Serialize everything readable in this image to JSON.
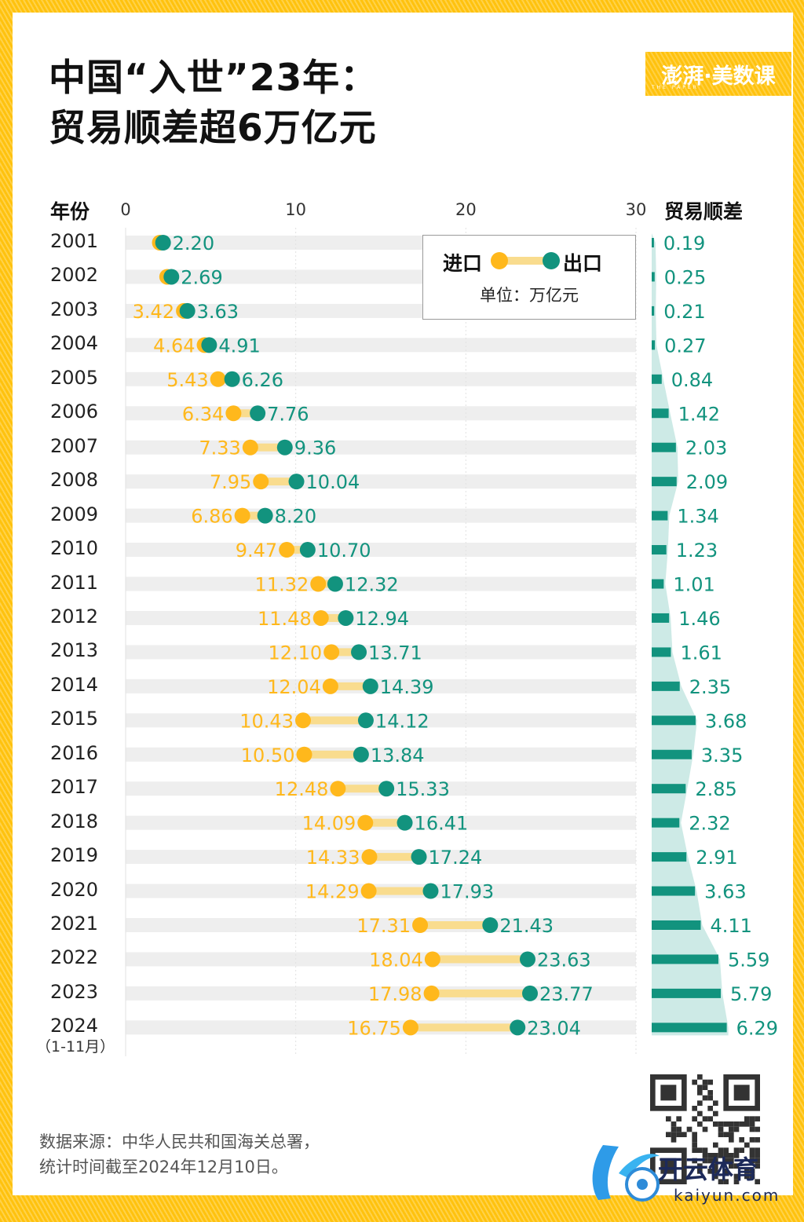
{
  "title_line1": "中国“入世”23年：",
  "title_line2": "贸易顺差超6万亿元",
  "logo_text": "澎湃·美数课",
  "logo_sub": "THE PAPER",
  "legend": {
    "import_label": "进口",
    "export_label": "出口",
    "unit": "单位：万亿元"
  },
  "headers": {
    "year": "年份",
    "balance": "贸易顺差"
  },
  "year_note": "（1-11月）",
  "source_line1": "数据来源：中华人民共和国海关总署，",
  "source_line2": "统计时间截至2024年12月10日。",
  "watermark": {
    "name": "开云体育",
    "url": "kaiyun.com"
  },
  "colors": {
    "import": "#FFB81C",
    "import_bar": "#F9DC8E",
    "export": "#12937E",
    "balance": "#12937E",
    "balance_area": "#CDEAE6",
    "row_band": "#EEEEEE",
    "frame": "#FFC20E"
  },
  "chart_data": {
    "type": "dumbbell",
    "title": "中国“入世”23年：贸易顺差超6万亿元",
    "unit": "万亿元",
    "xlim": [
      0,
      30
    ],
    "xticks": [
      "0",
      "10",
      "20",
      "30"
    ],
    "xtick_values": [
      0,
      10,
      20,
      30
    ],
    "grid": true,
    "legend_position": "top-right",
    "categories": [
      "2001",
      "2002",
      "2003",
      "2004",
      "2005",
      "2006",
      "2007",
      "2008",
      "2009",
      "2010",
      "2011",
      "2012",
      "2013",
      "2014",
      "2015",
      "2016",
      "2017",
      "2018",
      "2019",
      "2020",
      "2021",
      "2022",
      "2023",
      "2024"
    ],
    "series": [
      {
        "name": "进口",
        "values": [
          2.01,
          2.44,
          3.42,
          4.64,
          5.43,
          6.34,
          7.33,
          7.95,
          6.86,
          9.47,
          11.32,
          11.48,
          12.1,
          12.04,
          10.43,
          10.5,
          12.48,
          14.09,
          14.33,
          14.29,
          17.31,
          18.04,
          17.98,
          16.75
        ],
        "labels_shown": [
          false,
          false,
          true,
          true,
          true,
          true,
          true,
          true,
          true,
          true,
          true,
          true,
          true,
          true,
          true,
          true,
          true,
          true,
          true,
          true,
          true,
          true,
          true,
          true
        ]
      },
      {
        "name": "出口",
        "values": [
          2.2,
          2.69,
          3.63,
          4.91,
          6.26,
          7.76,
          9.36,
          10.04,
          8.2,
          10.7,
          12.32,
          12.94,
          13.71,
          14.39,
          14.12,
          13.84,
          15.33,
          16.41,
          17.24,
          17.93,
          21.43,
          23.63,
          23.77,
          23.04
        ]
      },
      {
        "name": "贸易顺差",
        "values": [
          0.19,
          0.25,
          0.21,
          0.27,
          0.84,
          1.42,
          2.03,
          2.09,
          1.34,
          1.23,
          1.01,
          1.46,
          1.61,
          2.35,
          3.68,
          3.35,
          2.85,
          2.32,
          2.91,
          3.63,
          4.11,
          5.59,
          5.79,
          6.29
        ]
      }
    ],
    "import_labels": [
      "",
      "",
      "3.42",
      "4.64",
      "5.43",
      "6.34",
      "7.33",
      "7.95",
      "6.86",
      "9.47",
      "11.32",
      "11.48",
      "12.10",
      "12.04",
      "10.43",
      "10.50",
      "12.48",
      "14.09",
      "14.33",
      "14.29",
      "17.31",
      "18.04",
      "17.98",
      "16.75"
    ],
    "export_labels": [
      "2.20",
      "2.69",
      "3.63",
      "4.91",
      "6.26",
      "7.76",
      "9.36",
      "10.04",
      "8.20",
      "10.70",
      "12.32",
      "12.94",
      "13.71",
      "14.39",
      "14.12",
      "13.84",
      "15.33",
      "16.41",
      "17.24",
      "17.93",
      "21.43",
      "23.63",
      "23.77",
      "23.04"
    ],
    "balance_labels": [
      "0.19",
      "0.25",
      "0.21",
      "0.27",
      "0.84",
      "1.42",
      "2.03",
      "2.09",
      "1.34",
      "1.23",
      "1.01",
      "1.46",
      "1.61",
      "2.35",
      "3.68",
      "3.35",
      "2.85",
      "2.32",
      "2.91",
      "3.63",
      "4.11",
      "5.59",
      "5.79",
      "6.29"
    ]
  }
}
